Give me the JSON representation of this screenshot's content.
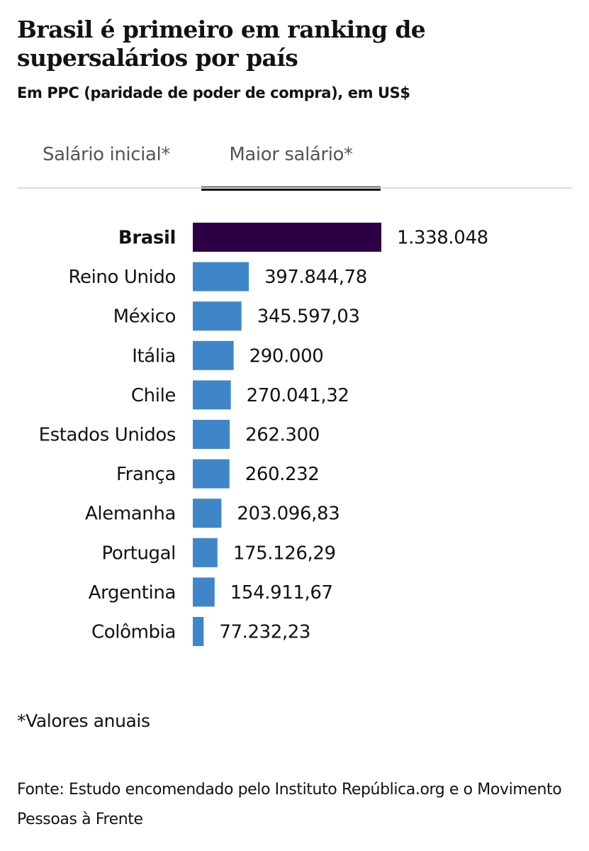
{
  "header": {
    "title": "Brasil é primeiro em ranking de supersalários por país",
    "subtitle": "Em PPC (paridade de poder de compra), em US$"
  },
  "tabs": [
    {
      "label": "Salário inicial*",
      "active": false
    },
    {
      "label": "Maior salário*",
      "active": true
    }
  ],
  "colors": {
    "highlight_bar": "#2b0045",
    "bar": "#3f86c8",
    "active_tab_underline": "#121212"
  },
  "chart_data": {
    "type": "bar",
    "orientation": "horizontal",
    "title": "Brasil é primeiro em ranking de supersalários por país",
    "subtitle": "Em PPC (paridade de poder de compra), em US$",
    "categories": [
      "Brasil",
      "Reino Unido",
      "México",
      "Itália",
      "Chile",
      "Estados Unidos",
      "França",
      "Alemanha",
      "Portugal",
      "Argentina",
      "Colômbia"
    ],
    "values": [
      1338048,
      397844.78,
      345597.03,
      290000,
      270041.32,
      262300,
      260232,
      203096.83,
      175126.29,
      154911.67,
      77232.23
    ],
    "value_labels": [
      "1.338.048",
      "397.844,78",
      "345.597,03",
      "290.000",
      "270.041,32",
      "262.300",
      "260.232",
      "203.096,83",
      "175.126,29",
      "154.911,67",
      "77.232,23"
    ],
    "highlight": "Brasil",
    "xlim": [
      0,
      1338048
    ],
    "grid": false,
    "legend": "none"
  },
  "footer": {
    "note": "*Valores anuais",
    "source": "Fonte: Estudo encomendado pelo Instituto República.org e o Movimento Pessoas à Frente"
  }
}
